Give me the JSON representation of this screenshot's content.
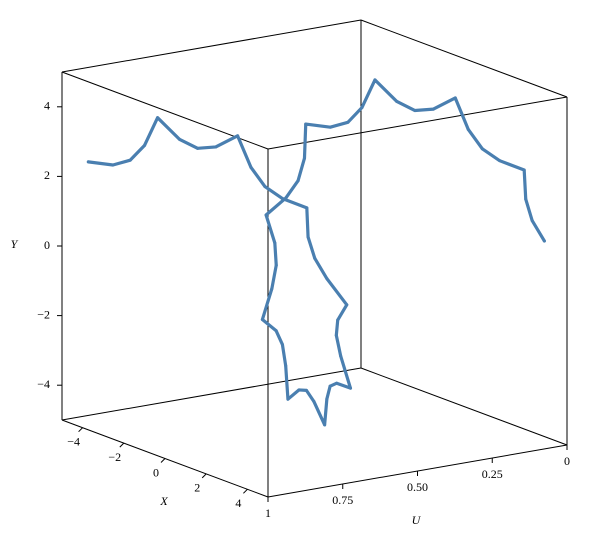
{
  "chart_data": {
    "type": "line3d",
    "xlabel": "X",
    "ylabel": "Y",
    "ulabel": "U",
    "xlim": [
      -5,
      5
    ],
    "ylim": [
      -5,
      5
    ],
    "ulim": [
      1,
      0
    ],
    "xticks": [
      {
        "value": -4,
        "label": "−4"
      },
      {
        "value": -2,
        "label": "−2"
      },
      0,
      2,
      4
    ],
    "yticks": [
      {
        "value": -4,
        "label": "−4"
      },
      {
        "value": -2,
        "label": "−2"
      },
      0,
      2,
      4
    ],
    "uticks": [
      1,
      0.75,
      {
        "value": 0.5,
        "label": "0.50"
      },
      0.25,
      0
    ],
    "series": [
      {
        "color": "#4a7fb0",
        "x": [
          -3.72,
          -2.79,
          -2.21,
          -1.79,
          -1.42,
          -0.62,
          0,
          0.62,
          1.42,
          1.79,
          2.21,
          2.79,
          3.72,
          3.52,
          3.57,
          3.9,
          4.6,
          3.9,
          3.57,
          3.52,
          3.72,
          2.79,
          2.21,
          1.79,
          1.42,
          0.62,
          0,
          -0.62,
          -1.42,
          -1.79,
          -2.21,
          -2.79,
          -3.72,
          -3.52,
          -3.57,
          -3.9,
          -4.6,
          -3.9,
          -3.57,
          -3.52,
          -3.72,
          -2.79,
          -2.21,
          -1.79,
          -1.42,
          -0.62,
          0,
          0.62,
          1.42,
          1.79,
          2.21,
          2.79,
          3.72,
          3.52,
          3.57,
          3.9
        ],
        "y": [
          2.7,
          2.79,
          3.03,
          3.52,
          4.37,
          3.9,
          3.75,
          3.9,
          4.37,
          3.52,
          3.03,
          2.79,
          2.7,
          1.79,
          1.16,
          0.62,
          0,
          -0.62,
          -1.16,
          -1.79,
          -2.7,
          -2.79,
          -3.03,
          -3.52,
          -4.37,
          -3.9,
          -3.75,
          -3.9,
          -4.37,
          -3.52,
          -3.03,
          -2.79,
          -2.7,
          -1.79,
          -1.16,
          -0.62,
          0,
          0.62,
          1.16,
          1.79,
          2.7,
          2.79,
          3.03,
          3.52,
          4.37,
          3.9,
          3.75,
          3.9,
          4.37,
          3.52,
          3.03,
          2.79,
          2.7,
          1.79,
          1.16,
          0.62
        ],
        "u": [
          1,
          0.982,
          0.964,
          0.945,
          0.927,
          0.909,
          0.891,
          0.873,
          0.855,
          0.836,
          0.818,
          0.8,
          0.782,
          0.764,
          0.745,
          0.727,
          0.709,
          0.691,
          0.673,
          0.655,
          0.636,
          0.618,
          0.6,
          0.582,
          0.564,
          0.545,
          0.527,
          0.509,
          0.491,
          0.473,
          0.455,
          0.436,
          0.418,
          0.4,
          0.382,
          0.364,
          0.345,
          0.327,
          0.309,
          0.291,
          0.273,
          0.255,
          0.236,
          0.218,
          0.2,
          0.182,
          0.164,
          0.145,
          0.127,
          0.109,
          0.091,
          0.073,
          0.055,
          0.036,
          0.018,
          0
        ]
      }
    ]
  }
}
